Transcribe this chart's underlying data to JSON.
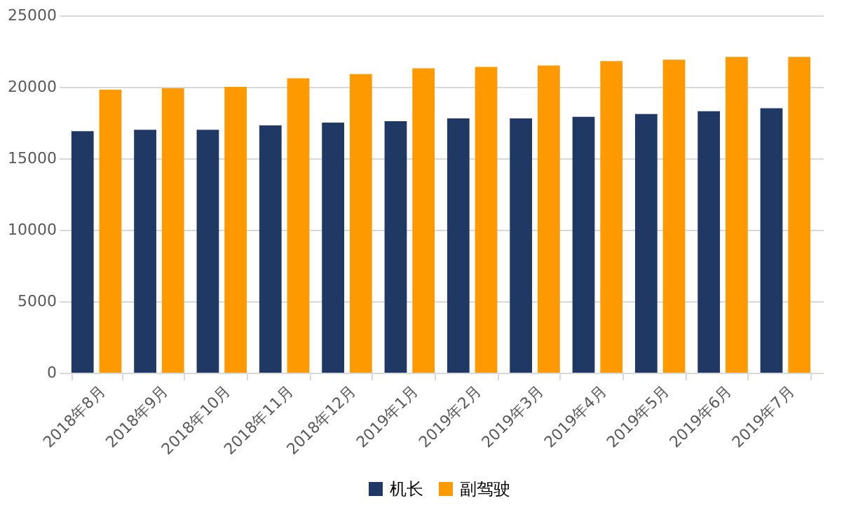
{
  "chart_data": {
    "type": "bar",
    "categories": [
      "2018年8月",
      "2018年9月",
      "2018年10月",
      "2018年11月",
      "2018年12月",
      "2019年1月",
      "2019年2月",
      "2019年3月",
      "2019年4月",
      "2019年5月",
      "2019年6月",
      "2019年7月"
    ],
    "series": [
      {
        "name": "机长",
        "color": "#203864",
        "values": [
          16900,
          17000,
          17000,
          17300,
          17500,
          17600,
          17800,
          17800,
          17900,
          18100,
          18300,
          18500
        ]
      },
      {
        "name": "副驾驶",
        "color": "#ff9900",
        "values": [
          19800,
          19900,
          20000,
          20600,
          20900,
          21300,
          21400,
          21500,
          21800,
          21900,
          22100,
          22100
        ]
      }
    ],
    "ylim": [
      0,
      25000
    ],
    "yticks": [
      0,
      5000,
      10000,
      15000,
      20000,
      25000
    ],
    "grid": "y",
    "legend": "bottom"
  }
}
